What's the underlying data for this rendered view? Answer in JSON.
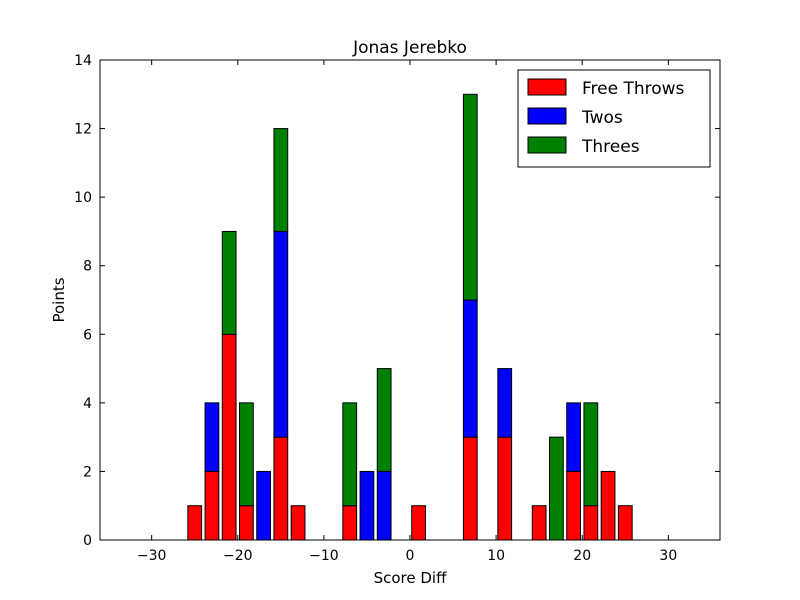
{
  "chart_data": {
    "type": "bar",
    "stacked": true,
    "title": "Jonas Jerebko",
    "xlabel": "Score Diff",
    "ylabel": "Points",
    "xlim": [
      -36,
      36
    ],
    "ylim": [
      0,
      14
    ],
    "xticks": [
      -30,
      -20,
      -10,
      0,
      10,
      20,
      30
    ],
    "xtick_labels": [
      "−30",
      "−20",
      "−10",
      "0",
      "10",
      "20",
      "30"
    ],
    "yticks": [
      0,
      2,
      4,
      6,
      8,
      10,
      12,
      14
    ],
    "ytick_labels": [
      "0",
      "2",
      "4",
      "6",
      "8",
      "10",
      "12",
      "14"
    ],
    "bar_width": 1.6,
    "x": [
      -35,
      -33,
      -31,
      -29,
      -27,
      -25,
      -23,
      -21,
      -19,
      -17,
      -15,
      -13,
      -11,
      -9,
      -7,
      -5,
      -3,
      -1,
      1,
      3,
      5,
      7,
      9,
      11,
      13,
      15,
      17,
      19,
      21,
      23,
      25,
      27,
      29,
      31,
      33,
      35
    ],
    "grid": false,
    "legend_position": "top-right",
    "series": [
      {
        "name": "Free Throws",
        "color": "#ff0000",
        "values": [
          0,
          0,
          0,
          0,
          0,
          1,
          2,
          6,
          1,
          0,
          3,
          1,
          0,
          0,
          1,
          0,
          0,
          0,
          1,
          0,
          0,
          3,
          0,
          3,
          0,
          1,
          0,
          2,
          1,
          2,
          1,
          0,
          0,
          0,
          0,
          0
        ]
      },
      {
        "name": "Twos",
        "color": "#0000ff",
        "values": [
          0,
          0,
          0,
          0,
          0,
          0,
          2,
          0,
          0,
          2,
          6,
          0,
          0,
          0,
          0,
          2,
          2,
          0,
          0,
          0,
          0,
          4,
          0,
          2,
          0,
          0,
          0,
          2,
          0,
          0,
          0,
          0,
          0,
          0,
          0,
          0
        ]
      },
      {
        "name": "Threes",
        "color": "#008000",
        "values": [
          0,
          0,
          0,
          0,
          0,
          0,
          0,
          3,
          3,
          0,
          3,
          0,
          0,
          0,
          3,
          0,
          3,
          0,
          0,
          0,
          0,
          6,
          0,
          0,
          0,
          0,
          3,
          0,
          3,
          0,
          0,
          0,
          0,
          0,
          0,
          0
        ]
      }
    ]
  }
}
